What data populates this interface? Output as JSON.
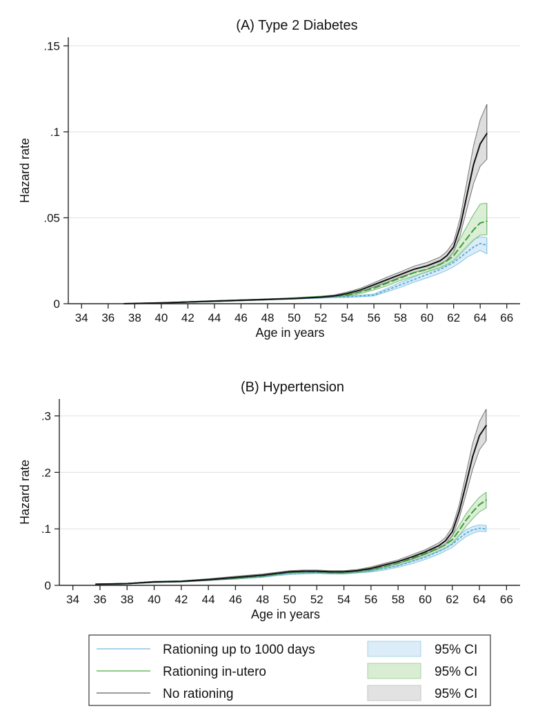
{
  "chart_data": [
    {
      "type": "line",
      "title": "(A) Type 2 Diabetes",
      "xlabel": "Age in years",
      "ylabel": "Hazard rate",
      "xlim": [
        33,
        67
      ],
      "ylim": [
        0,
        0.155
      ],
      "xticks": [
        34,
        36,
        38,
        40,
        42,
        44,
        46,
        48,
        50,
        52,
        54,
        56,
        58,
        60,
        62,
        64,
        66
      ],
      "xtick_labels": [
        "34",
        "36",
        "38",
        "40",
        "42",
        "44",
        "46",
        "48",
        "50",
        "52",
        "54",
        "56",
        "58",
        "60",
        "62",
        "64",
        "66"
      ],
      "yticks": [
        0,
        0.05,
        0.1,
        0.15
      ],
      "ytick_labels": [
        "0",
        ".05",
        ".1",
        ".15"
      ],
      "grid": true,
      "x": [
        37.2,
        40,
        42,
        44,
        46,
        48,
        50,
        52,
        53,
        54,
        55,
        56,
        57,
        58,
        59,
        60,
        61,
        61.5,
        62,
        62.5,
        63,
        63.5,
        64,
        64.5
      ],
      "series": [
        {
          "name": "Rationing up to 1000 days",
          "color": "#5aaed8",
          "dash": "dot",
          "values": [
            0,
            0.0005,
            0.001,
            0.0015,
            0.002,
            0.0025,
            0.003,
            0.0035,
            0.0038,
            0.004,
            0.0045,
            0.005,
            0.008,
            0.011,
            0.014,
            0.017,
            0.02,
            0.022,
            0.024,
            0.027,
            0.03,
            0.033,
            0.035,
            0.034
          ],
          "ci_lower": [
            0,
            0.0004,
            0.0008,
            0.0012,
            0.0017,
            0.0022,
            0.0027,
            0.0032,
            0.0035,
            0.0036,
            0.004,
            0.0045,
            0.007,
            0.0095,
            0.0125,
            0.015,
            0.0178,
            0.0195,
            0.0215,
            0.024,
            0.027,
            0.029,
            0.031,
            0.029
          ],
          "ci_upper": [
            0,
            0.0006,
            0.0012,
            0.0018,
            0.0023,
            0.0028,
            0.0033,
            0.0038,
            0.0041,
            0.0044,
            0.005,
            0.0056,
            0.009,
            0.0125,
            0.0155,
            0.019,
            0.0222,
            0.0245,
            0.0265,
            0.03,
            0.034,
            0.0375,
            0.039,
            0.0385
          ]
        },
        {
          "name": "Rationing in-utero",
          "color": "#3c9a3c",
          "dash": "dash",
          "values": [
            0,
            0.0005,
            0.001,
            0.0015,
            0.002,
            0.0025,
            0.0032,
            0.004,
            0.0045,
            0.005,
            0.007,
            0.009,
            0.012,
            0.015,
            0.018,
            0.02,
            0.023,
            0.025,
            0.028,
            0.033,
            0.038,
            0.043,
            0.047,
            0.048
          ],
          "ci_lower": [
            0,
            0.0004,
            0.0008,
            0.0012,
            0.0017,
            0.0022,
            0.0029,
            0.0036,
            0.004,
            0.0044,
            0.006,
            0.008,
            0.0105,
            0.0135,
            0.016,
            0.0185,
            0.021,
            0.0228,
            0.025,
            0.029,
            0.033,
            0.037,
            0.04,
            0.04
          ],
          "ci_upper": [
            0,
            0.0006,
            0.0012,
            0.0018,
            0.0023,
            0.0028,
            0.0035,
            0.0044,
            0.005,
            0.0056,
            0.008,
            0.0105,
            0.0135,
            0.017,
            0.02,
            0.0225,
            0.0255,
            0.028,
            0.032,
            0.038,
            0.045,
            0.052,
            0.058,
            0.0585
          ]
        },
        {
          "name": "No rationing",
          "color": "#111111",
          "dash": "solid",
          "values": [
            0,
            0.0005,
            0.001,
            0.0015,
            0.002,
            0.0025,
            0.003,
            0.0038,
            0.0045,
            0.006,
            0.008,
            0.011,
            0.014,
            0.017,
            0.02,
            0.022,
            0.025,
            0.028,
            0.033,
            0.045,
            0.063,
            0.081,
            0.093,
            0.099
          ],
          "ci_lower": [
            0,
            0.0004,
            0.0008,
            0.0012,
            0.0017,
            0.0022,
            0.0027,
            0.0034,
            0.004,
            0.0052,
            0.007,
            0.0098,
            0.0125,
            0.0155,
            0.0182,
            0.02,
            0.0228,
            0.0255,
            0.03,
            0.04,
            0.055,
            0.07,
            0.08,
            0.084
          ],
          "ci_upper": [
            0,
            0.0006,
            0.0012,
            0.0018,
            0.0023,
            0.0028,
            0.0033,
            0.0042,
            0.005,
            0.0068,
            0.009,
            0.0122,
            0.0155,
            0.0185,
            0.0218,
            0.024,
            0.0272,
            0.0305,
            0.036,
            0.05,
            0.071,
            0.092,
            0.107,
            0.116
          ]
        }
      ]
    },
    {
      "type": "line",
      "title": "(B) Hypertension",
      "xlabel": "Age in years",
      "ylabel": "Hazard rate",
      "xlim": [
        33,
        67
      ],
      "ylim": [
        0,
        0.33
      ],
      "xticks": [
        34,
        36,
        38,
        40,
        42,
        44,
        46,
        48,
        50,
        52,
        54,
        56,
        58,
        60,
        62,
        64,
        66
      ],
      "xtick_labels": [
        "34",
        "36",
        "38",
        "40",
        "42",
        "44",
        "46",
        "48",
        "50",
        "52",
        "54",
        "56",
        "58",
        "60",
        "62",
        "64",
        "66"
      ],
      "yticks": [
        0,
        0.1,
        0.2,
        0.3
      ],
      "ytick_labels": [
        "0",
        ".1",
        ".2",
        ".3"
      ],
      "grid": true,
      "x": [
        35.7,
        38,
        40,
        42,
        44,
        46,
        48,
        49,
        50,
        51,
        52,
        53,
        54,
        55,
        56,
        57,
        58,
        59,
        60,
        61,
        61.5,
        62,
        62.5,
        63,
        63.5,
        64,
        64.5
      ],
      "series": [
        {
          "name": "Rationing up to 1000 days",
          "color": "#5aaed8",
          "dash": "dot",
          "values": [
            0.002,
            0.003,
            0.006,
            0.007,
            0.01,
            0.013,
            0.016,
            0.019,
            0.021,
            0.022,
            0.023,
            0.022,
            0.022,
            0.024,
            0.026,
            0.03,
            0.035,
            0.042,
            0.05,
            0.06,
            0.066,
            0.073,
            0.083,
            0.092,
            0.098,
            0.101,
            0.1
          ],
          "ci_lower": [
            0.0015,
            0.0025,
            0.005,
            0.006,
            0.0085,
            0.011,
            0.014,
            0.017,
            0.019,
            0.02,
            0.021,
            0.02,
            0.02,
            0.022,
            0.0235,
            0.027,
            0.032,
            0.038,
            0.046,
            0.055,
            0.061,
            0.067,
            0.077,
            0.086,
            0.092,
            0.096,
            0.095
          ],
          "ci_upper": [
            0.0025,
            0.0035,
            0.007,
            0.008,
            0.0115,
            0.015,
            0.018,
            0.021,
            0.023,
            0.024,
            0.025,
            0.024,
            0.024,
            0.026,
            0.0285,
            0.033,
            0.038,
            0.046,
            0.054,
            0.065,
            0.071,
            0.079,
            0.089,
            0.098,
            0.104,
            0.107,
            0.106
          ]
        },
        {
          "name": "Rationing in-utero",
          "color": "#3c9a3c",
          "dash": "dash",
          "values": [
            0.002,
            0.003,
            0.006,
            0.007,
            0.01,
            0.013,
            0.017,
            0.02,
            0.023,
            0.024,
            0.024,
            0.023,
            0.023,
            0.025,
            0.028,
            0.033,
            0.039,
            0.047,
            0.056,
            0.066,
            0.072,
            0.081,
            0.097,
            0.115,
            0.13,
            0.143,
            0.151
          ],
          "ci_lower": [
            0.0015,
            0.0025,
            0.005,
            0.006,
            0.0085,
            0.0115,
            0.015,
            0.018,
            0.021,
            0.022,
            0.022,
            0.021,
            0.0205,
            0.0225,
            0.025,
            0.03,
            0.035,
            0.043,
            0.051,
            0.061,
            0.066,
            0.074,
            0.088,
            0.104,
            0.118,
            0.13,
            0.137
          ],
          "ci_upper": [
            0.0025,
            0.0035,
            0.007,
            0.008,
            0.0115,
            0.0145,
            0.019,
            0.022,
            0.025,
            0.026,
            0.026,
            0.025,
            0.0255,
            0.0275,
            0.031,
            0.036,
            0.043,
            0.051,
            0.061,
            0.071,
            0.078,
            0.088,
            0.106,
            0.126,
            0.142,
            0.156,
            0.165
          ]
        },
        {
          "name": "No rationing",
          "color": "#111111",
          "dash": "solid",
          "values": [
            0.002,
            0.003,
            0.006,
            0.007,
            0.01,
            0.014,
            0.018,
            0.021,
            0.024,
            0.025,
            0.025,
            0.024,
            0.024,
            0.026,
            0.03,
            0.036,
            0.042,
            0.05,
            0.059,
            0.07,
            0.079,
            0.095,
            0.13,
            0.178,
            0.228,
            0.265,
            0.283
          ],
          "ci_lower": [
            0.0015,
            0.0025,
            0.005,
            0.006,
            0.0085,
            0.012,
            0.016,
            0.019,
            0.022,
            0.023,
            0.023,
            0.022,
            0.022,
            0.024,
            0.0275,
            0.033,
            0.039,
            0.046,
            0.055,
            0.065,
            0.073,
            0.087,
            0.118,
            0.16,
            0.205,
            0.24,
            0.256
          ],
          "ci_upper": [
            0.0025,
            0.0035,
            0.007,
            0.008,
            0.0115,
            0.016,
            0.02,
            0.023,
            0.026,
            0.027,
            0.027,
            0.026,
            0.026,
            0.028,
            0.0325,
            0.039,
            0.045,
            0.054,
            0.063,
            0.075,
            0.085,
            0.103,
            0.142,
            0.196,
            0.251,
            0.29,
            0.312
          ]
        }
      ]
    }
  ],
  "legend": {
    "position": "bottom",
    "rows": [
      {
        "label": "Rationing up to 1000 days",
        "ci_label": "95% CI",
        "line_color": "#a9d3ea",
        "fill": "#dcecf8",
        "stroke": "#a9d3ea"
      },
      {
        "label": "Rationing in-utero",
        "ci_label": "95% CI",
        "line_color": "#8ccc86",
        "fill": "#d9edd4",
        "stroke": "#a6d49f"
      },
      {
        "label": "No rationing",
        "ci_label": "95% CI",
        "line_color": "#9a9a9a",
        "fill": "#e2e2e2",
        "stroke": "#c4c4c4"
      }
    ]
  },
  "ci_fills": [
    "#cfe6f6",
    "#cdeac7",
    "#d3d3d3"
  ],
  "ci_strokes": [
    "#6cb8e0",
    "#55ab55",
    "#555555"
  ],
  "grid_color": "#e4e4e4"
}
